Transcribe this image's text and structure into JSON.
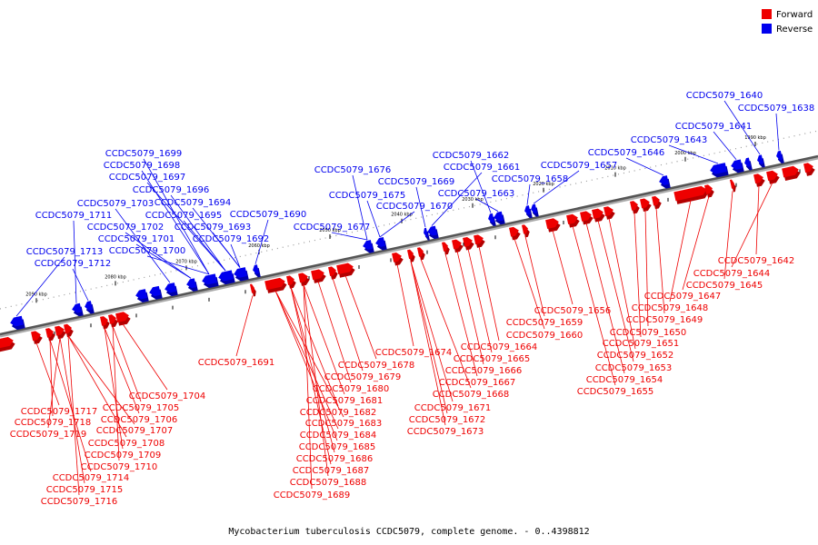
{
  "caption": "Mycobacterium tuberculosis CCDC5079, complete genome. - 0..4398812",
  "legend": {
    "items": [
      {
        "label": "Forward",
        "color": "#ee0000"
      },
      {
        "label": "Reverse",
        "color": "#0000ee"
      }
    ]
  },
  "ticks": [
    "2090 kbp",
    "2080 kbp",
    "2070 kbp",
    "2060 kbp",
    "2050 kbp",
    "2040 kbp",
    "2030 kbp",
    "2020 kbp",
    "2010 kbp",
    "2000 kbp",
    "1990 kbp"
  ],
  "reverse_genes": [
    "CCDC5079_1640",
    "CCDC5079_1638",
    "CCDC5079_1641",
    "CCDC5079_1643",
    "CCDC5079_1646",
    "CCDC5079_1657",
    "CCDC5079_1658",
    "CCDC5079_1662",
    "CCDC5079_1661",
    "CCDC5079_1663",
    "CCDC5079_1669",
    "CCDC5079_1670",
    "CCDC5079_1676",
    "CCDC5079_1675",
    "CCDC5079_1677",
    "CCDC5079_1690",
    "CCDC5079_1699",
    "CCDC5079_1698",
    "CCDC5079_1697",
    "CCDC5079_1696",
    "CCDC5079_1703",
    "CCDC5079_1694",
    "CCDC5079_1711",
    "CCDC5079_1695",
    "CCDC5079_1702",
    "CCDC5079_1693",
    "CCDC5079_1701",
    "CCDC5079_1692",
    "CCDC5079_1713",
    "CCDC5079_1700",
    "CCDC5079_1712"
  ],
  "forward_genes": [
    "CCDC5079_1642",
    "CCDC5079_1644",
    "CCDC5079_1645",
    "CCDC5079_1647",
    "CCDC5079_1648",
    "CCDC5079_1656",
    "CCDC5079_1649",
    "CCDC5079_1659",
    "CCDC5079_1650",
    "CCDC5079_1660",
    "CCDC5079_1651",
    "CCDC5079_1664",
    "CCDC5079_1652",
    "CCDC5079_1674",
    "CCDC5079_1665",
    "CCDC5079_1691",
    "CCDC5079_1678",
    "CCDC5079_1653",
    "CCDC5079_1666",
    "CCDC5079_1679",
    "CCDC5079_1654",
    "CCDC5079_1667",
    "CCDC5079_1680",
    "CCDC5079_1655",
    "CCDC5079_1704",
    "CCDC5079_1668",
    "CCDC5079_1681",
    "CCDC5079_1705",
    "CCDC5079_1671",
    "CCDC5079_1717",
    "CCDC5079_1682",
    "CCDC5079_1706",
    "CCDC5079_1672",
    "CCDC5079_1718",
    "CCDC5079_1683",
    "CCDC5079_1707",
    "CCDC5079_1673",
    "CCDC5079_1719",
    "CCDC5079_1684",
    "CCDC5079_1708",
    "CCDC5079_1685",
    "CCDC5079_1709",
    "CCDC5079_1686",
    "CCDC5079_1710",
    "CCDC5079_1687",
    "CCDC5079_1714",
    "CCDC5079_1688",
    "CCDC5079_1715",
    "CCDC5079_1689",
    "CCDC5079_1716"
  ]
}
